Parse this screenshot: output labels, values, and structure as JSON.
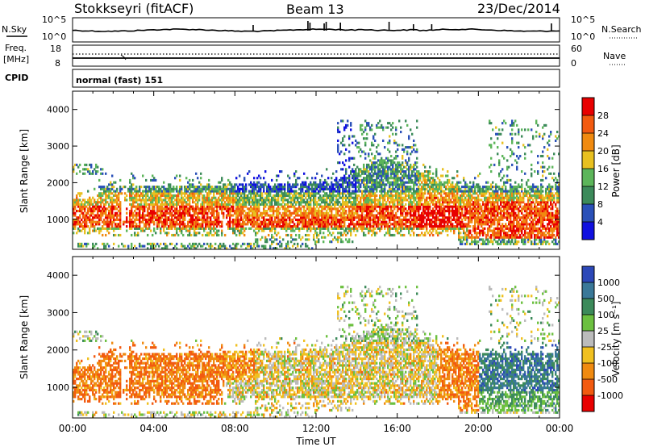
{
  "header": {
    "station": "Stokkseyri (fitACF)",
    "beam": "Beam 13",
    "date": "23/Dec/2014"
  },
  "top_panel": {
    "left_label": "N.Sky",
    "right_label": "N.Search",
    "left_ticks": [
      "10^5",
      "10^0"
    ],
    "right_ticks": [
      "10^5",
      "10^0"
    ]
  },
  "freq_panel": {
    "left_label_1": "Freq.",
    "left_label_2": "[MHz]",
    "right_label": "Nave",
    "left_ticks": [
      "18",
      "8"
    ],
    "right_ticks": [
      "60",
      "0"
    ]
  },
  "cpid_panel": {
    "label": "CPID",
    "text": "normal (fast) 151"
  },
  "power_panel": {
    "ylabel": "Slant Range [km]",
    "colorbar_label": "Power [dB]"
  },
  "velocity_panel": {
    "ylabel": "Slant Range [km]",
    "colorbar_label": "Velocity [m s⁻¹]"
  },
  "xaxis": {
    "label": "Time UT"
  },
  "chart_data": {
    "type": "heatmap",
    "x_ticks": [
      "00:00",
      "04:00",
      "08:00",
      "12:00",
      "16:00",
      "20:00",
      "00:00"
    ],
    "x_range_hours": [
      0,
      24
    ],
    "y_ticks": [
      "1000",
      "2000",
      "3000",
      "4000"
    ],
    "y_range_km": [
      180,
      4500
    ],
    "power": {
      "colorbar_ticks": [
        "4",
        "8",
        "12",
        "16",
        "20",
        "24",
        "28"
      ],
      "colors": [
        "#1010e0",
        "#2a50b8",
        "#3c8a5a",
        "#5cb55a",
        "#e8c020",
        "#f08a10",
        "#f25a10",
        "#e80000"
      ]
    },
    "velocity": {
      "colorbar_ticks": [
        "1000",
        "500",
        "100",
        "25",
        "-25",
        "-100",
        "-500",
        "-1000"
      ],
      "colors": [
        "#2c48b8",
        "#3a7898",
        "#3c8a5a",
        "#6cc040",
        "#bbbbbb",
        "#f0c020",
        "#f08a10",
        "#f25a10",
        "#e80000"
      ]
    }
  }
}
